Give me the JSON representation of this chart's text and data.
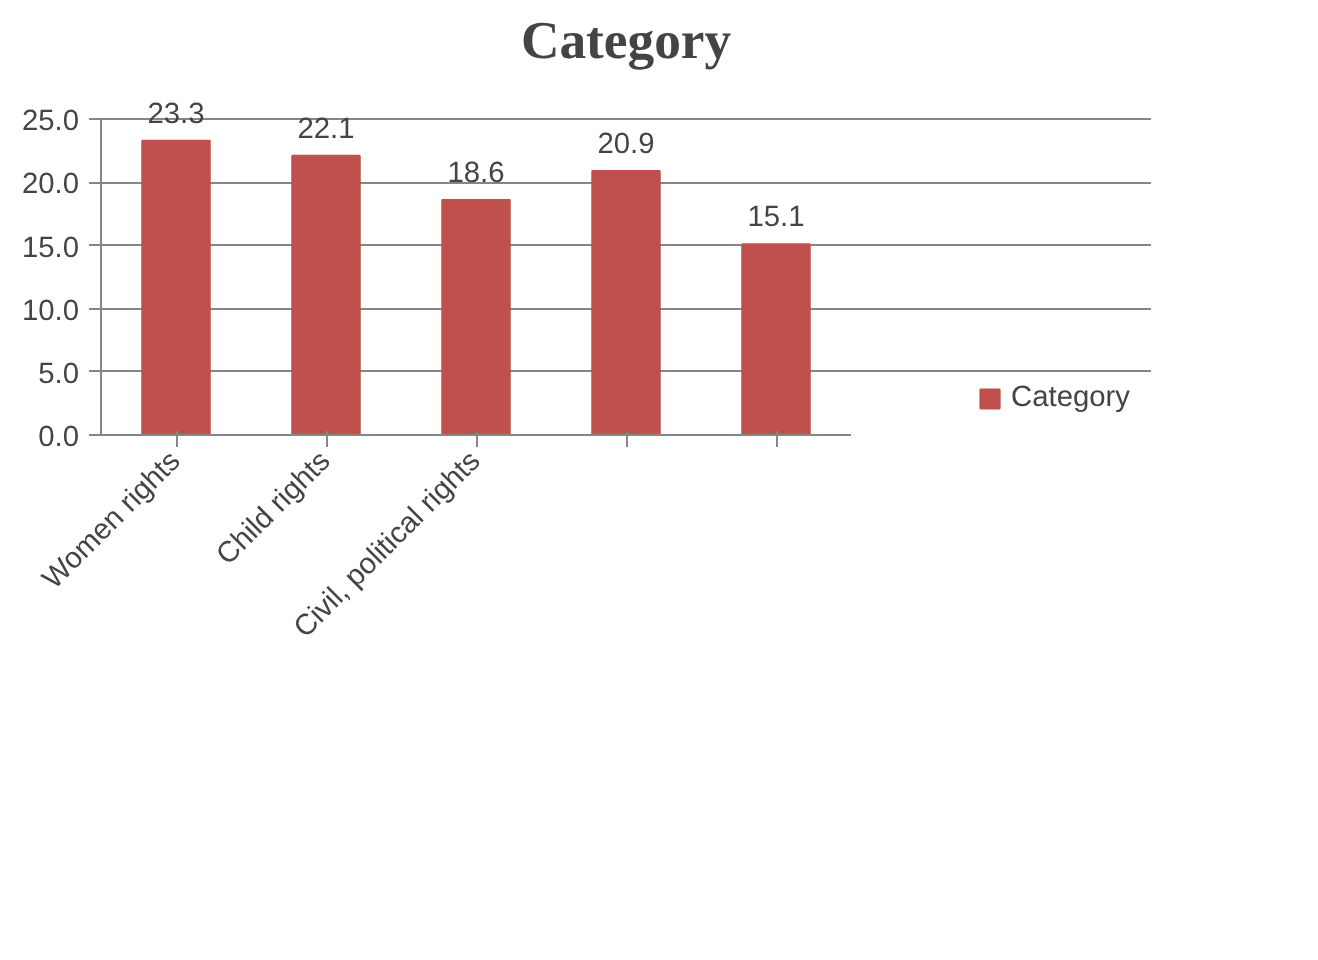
{
  "chart_data": {
    "type": "bar",
    "title": "Category",
    "categories": [
      "Women rights",
      "Child rights",
      "Civil, political rights",
      null,
      null
    ],
    "series": [
      {
        "name": "Category",
        "color": "#c0504d",
        "values": [
          23.3,
          22.1,
          18.6,
          20.9,
          15.1
        ]
      }
    ],
    "ylim": [
      0,
      25
    ],
    "yticks": [
      {
        "value": 0,
        "label": "0.0"
      },
      {
        "value": 5,
        "label": "5.0"
      },
      {
        "value": 10,
        "label": "10.0"
      },
      {
        "value": 15,
        "label": "15.0"
      },
      {
        "value": 20,
        "label": "20.0"
      },
      {
        "value": 25,
        "label": "25.0"
      }
    ],
    "grid": "y",
    "legend": "right",
    "data_labels": true
  }
}
